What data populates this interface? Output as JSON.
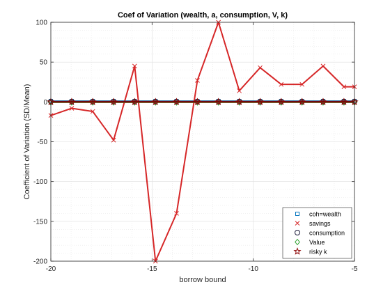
{
  "chart_data": {
    "type": "line",
    "title": "Coef of Variation (wealth, a, consumption, V, k)",
    "xlabel": "borrow bound",
    "ylabel": "Coefficient of Variation (SD/Mean)",
    "xlim": [
      -20,
      -5
    ],
    "ylim": [
      -200,
      100
    ],
    "xticks": [
      -20,
      -15,
      -10,
      -5
    ],
    "xtick_labels": [
      "-20",
      "-15",
      "-10",
      "-5"
    ],
    "yticks": [
      -200,
      -150,
      -100,
      -50,
      0,
      50,
      100
    ],
    "ytick_labels": [
      "-200",
      "-150",
      "-100",
      "-50",
      "0",
      "50",
      "100"
    ],
    "grid": true,
    "minor_grid": true,
    "legend_position": "bottom-right",
    "x": [
      -20,
      -18.97,
      -17.93,
      -16.9,
      -15.86,
      -14.83,
      -13.79,
      -12.76,
      -11.72,
      -10.69,
      -9.66,
      -8.62,
      -7.59,
      -6.55,
      -5.52,
      -5
    ],
    "series": [
      {
        "name": "coh=wealth",
        "marker": "square",
        "color": "#0072BD",
        "values": [
          1,
          1,
          1,
          1,
          1,
          1,
          1,
          1,
          1,
          1,
          1,
          1,
          1,
          1,
          1,
          1
        ]
      },
      {
        "name": "savings",
        "marker": "x",
        "color": "#D62728",
        "values": [
          -17,
          -8,
          -12,
          -48,
          45,
          -200,
          -140,
          27,
          100,
          14,
          43,
          22,
          22,
          45,
          19,
          19
        ]
      },
      {
        "name": "consumption",
        "marker": "circle",
        "color": "#1a1a3a",
        "values": [
          0.5,
          0.5,
          0.5,
          0.5,
          0.5,
          0.5,
          0.5,
          0.5,
          0.5,
          0.5,
          0.5,
          0.5,
          0.5,
          0.5,
          0.5,
          0.5
        ]
      },
      {
        "name": "Value",
        "marker": "diamond",
        "color": "#2CA02C",
        "values": [
          -0.5,
          -0.5,
          -0.5,
          -0.5,
          -0.5,
          -0.5,
          -0.5,
          -0.5,
          -0.5,
          -0.5,
          -0.5,
          -0.5,
          -0.5,
          -0.5,
          -0.5,
          -0.5
        ]
      },
      {
        "name": "risky k",
        "marker": "pentagram",
        "color": "#8B0000",
        "values": [
          0,
          0,
          0,
          0,
          0,
          0,
          0,
          0,
          0,
          0,
          0,
          0,
          0,
          0,
          0,
          0
        ]
      }
    ]
  }
}
